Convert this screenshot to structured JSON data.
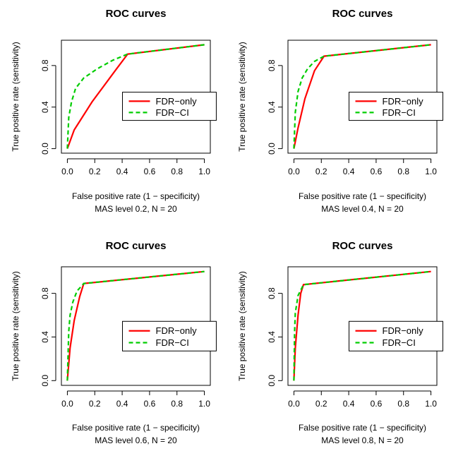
{
  "chart_data": [
    {
      "type": "line",
      "title": "ROC curves",
      "xlabel": "False positive rate (1 − specificity)",
      "ylabel": "True positive rate (sensitivity)",
      "subtitle": "MAS level 0.2, N = 20",
      "xlim": [
        0,
        1
      ],
      "ylim": [
        0,
        1
      ],
      "x_ticks": [
        "0.0",
        "0.2",
        "0.4",
        "0.6",
        "0.8",
        "1.0"
      ],
      "y_ticks": [
        "0.0",
        "0.4",
        "0.8"
      ],
      "legend_position": "right",
      "series": [
        {
          "name": "FDR−only",
          "color": "#ff0000",
          "style": "solid",
          "x": [
            0,
            0.05,
            0.18,
            0.36,
            0.44,
            1.0
          ],
          "y": [
            0,
            0.18,
            0.45,
            0.77,
            0.91,
            1.0
          ]
        },
        {
          "name": "FDR−CI",
          "color": "#00cd00",
          "style": "dashed",
          "x": [
            0,
            0.01,
            0.03,
            0.06,
            0.12,
            0.22,
            0.33,
            0.44,
            1.0
          ],
          "y": [
            0,
            0.3,
            0.45,
            0.58,
            0.68,
            0.77,
            0.85,
            0.91,
            1.0
          ]
        }
      ]
    },
    {
      "type": "line",
      "title": "ROC curves",
      "xlabel": "False positive rate (1 − specificity)",
      "ylabel": "True positive rate (sensitivity)",
      "subtitle": "MAS level 0.4, N = 20",
      "xlim": [
        0,
        1
      ],
      "ylim": [
        0,
        1
      ],
      "x_ticks": [
        "0.0",
        "0.2",
        "0.4",
        "0.6",
        "0.8",
        "1.0"
      ],
      "y_ticks": [
        "0.0",
        "0.4",
        "0.8"
      ],
      "legend_position": "right",
      "series": [
        {
          "name": "FDR−only",
          "color": "#ff0000",
          "style": "solid",
          "x": [
            0,
            0.03,
            0.08,
            0.15,
            0.22,
            1.0
          ],
          "y": [
            0,
            0.2,
            0.48,
            0.75,
            0.89,
            1.0
          ]
        },
        {
          "name": "FDR−CI",
          "color": "#00cd00",
          "style": "dashed",
          "x": [
            0,
            0.01,
            0.03,
            0.06,
            0.1,
            0.15,
            0.22,
            1.0
          ],
          "y": [
            0,
            0.35,
            0.55,
            0.68,
            0.77,
            0.84,
            0.89,
            1.0
          ]
        }
      ]
    },
    {
      "type": "line",
      "title": "ROC curves",
      "xlabel": "False positive rate (1 − specificity)",
      "ylabel": "True positive rate (sensitivity)",
      "subtitle": "MAS level 0.6, N = 20",
      "xlim": [
        0,
        1
      ],
      "ylim": [
        0,
        1
      ],
      "x_ticks": [
        "0.0",
        "0.2",
        "0.4",
        "0.6",
        "0.8",
        "1.0"
      ],
      "y_ticks": [
        "0.0",
        "0.4",
        "0.8"
      ],
      "legend_position": "right",
      "series": [
        {
          "name": "FDR−only",
          "color": "#ff0000",
          "style": "solid",
          "x": [
            0,
            0.02,
            0.05,
            0.09,
            0.12,
            1.0
          ],
          "y": [
            0,
            0.3,
            0.55,
            0.77,
            0.89,
            1.0
          ]
        },
        {
          "name": "FDR−CI",
          "color": "#00cd00",
          "style": "dashed",
          "x": [
            0,
            0.01,
            0.02,
            0.04,
            0.07,
            0.12,
            1.0
          ],
          "y": [
            0,
            0.45,
            0.6,
            0.72,
            0.82,
            0.89,
            1.0
          ]
        }
      ]
    },
    {
      "type": "line",
      "title": "ROC curves",
      "xlabel": "False positive rate (1 − specificity)",
      "ylabel": "True positive rate (sensitivity)",
      "subtitle": "MAS level 0.8, N = 20",
      "xlim": [
        0,
        1
      ],
      "ylim": [
        0,
        1
      ],
      "x_ticks": [
        "0.0",
        "0.2",
        "0.4",
        "0.6",
        "0.8",
        "1.0"
      ],
      "y_ticks": [
        "0.0",
        "0.4",
        "0.8"
      ],
      "legend_position": "right",
      "series": [
        {
          "name": "FDR−only",
          "color": "#ff0000",
          "style": "solid",
          "x": [
            0,
            0.01,
            0.03,
            0.05,
            0.07,
            1.0
          ],
          "y": [
            0,
            0.3,
            0.6,
            0.8,
            0.88,
            1.0
          ]
        },
        {
          "name": "FDR−CI",
          "color": "#00cd00",
          "style": "dashed",
          "x": [
            0,
            0.005,
            0.01,
            0.03,
            0.07,
            1.0
          ],
          "y": [
            0,
            0.45,
            0.62,
            0.78,
            0.88,
            1.0
          ]
        }
      ]
    }
  ]
}
